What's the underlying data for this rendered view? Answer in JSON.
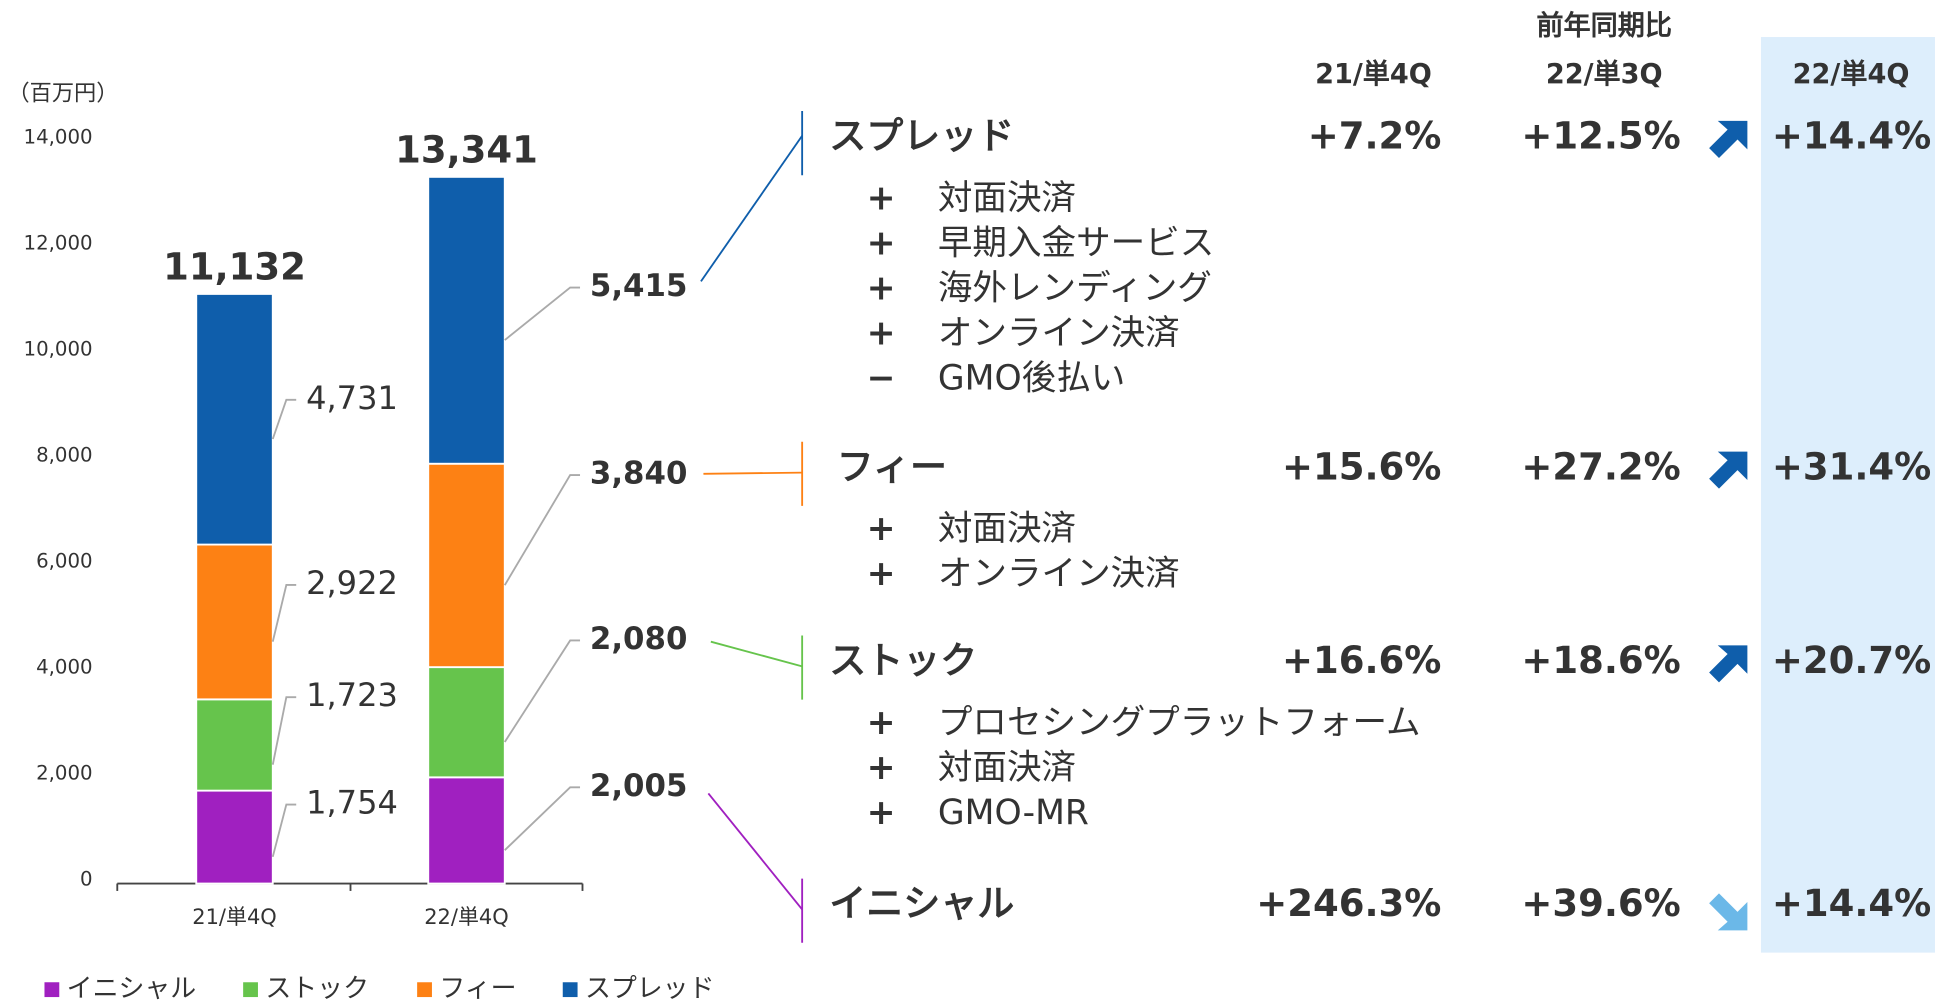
{
  "chart_data": {
    "type": "bar",
    "stacked": true,
    "unit_label": "（百万円）",
    "categories": [
      "21/単4Q",
      "22/単4Q"
    ],
    "series": [
      {
        "name": "イニシャル",
        "color": "#a020c0",
        "values": [
          1754,
          2005
        ],
        "value_labels": [
          "1,754",
          "2,005"
        ]
      },
      {
        "name": "ストック",
        "color": "#66c44c",
        "values": [
          1723,
          2080
        ],
        "value_labels": [
          "1,723",
          "2,080"
        ]
      },
      {
        "name": "フィー",
        "color": "#fd8114",
        "values": [
          2922,
          3840
        ],
        "value_labels": [
          "2,922",
          "3,840"
        ]
      },
      {
        "name": "スプレッド",
        "color": "#0f5eab",
        "values": [
          4731,
          5415
        ],
        "value_labels": [
          "4,731",
          "5,415"
        ]
      }
    ],
    "totals": [
      11132,
      13341
    ],
    "total_labels": [
      "11,132",
      "13,341"
    ],
    "ylim": [
      0,
      14000
    ],
    "yticks": [
      0,
      {
        "value": 2000,
        "label": "2,000"
      },
      {
        "value": 4000,
        "label": "4,000"
      },
      {
        "value": 6000,
        "label": "6,000"
      },
      {
        "value": 8000,
        "label": "8,000"
      },
      {
        "value": 10000,
        "label": "10,000"
      },
      {
        "value": 12000,
        "label": "12,000"
      },
      {
        "value": 14000,
        "label": "14,000"
      }
    ]
  },
  "table": {
    "group_header": "前年同期比",
    "columns": [
      "21/単4Q",
      "22/単3Q",
      "22/単4Q"
    ],
    "rows": [
      {
        "name": "スプレッド",
        "values": [
          "+7.2%",
          "+12.5%",
          "+14.4%"
        ],
        "items": [
          {
            "sign": "+",
            "text": "対面決済"
          },
          {
            "sign": "+",
            "text": "早期入金サービス"
          },
          {
            "sign": "+",
            "text": "海外レンディング"
          },
          {
            "sign": "+",
            "text": "オンライン決済"
          },
          {
            "sign": "−",
            "text": "GMO後払い"
          }
        ]
      },
      {
        "name": "フィー",
        "values": [
          "+15.6%",
          "+27.2%",
          "+31.4%"
        ],
        "items": [
          {
            "sign": "+",
            "text": "対面決済"
          },
          {
            "sign": "+",
            "text": "オンライン決済"
          }
        ]
      },
      {
        "name": "ストック",
        "values": [
          "+16.6%",
          "+18.6%",
          "+20.7%"
        ],
        "items": [
          {
            "sign": "+",
            "text": "プロセシングプラットフォーム"
          },
          {
            "sign": "+",
            "text": "対面決済"
          },
          {
            "sign": "+",
            "text": "GMO-MR"
          }
        ]
      },
      {
        "name": "イニシャル",
        "values": [
          "+246.3%",
          "+39.6%",
          "+14.4%"
        ],
        "items": []
      }
    ]
  }
}
